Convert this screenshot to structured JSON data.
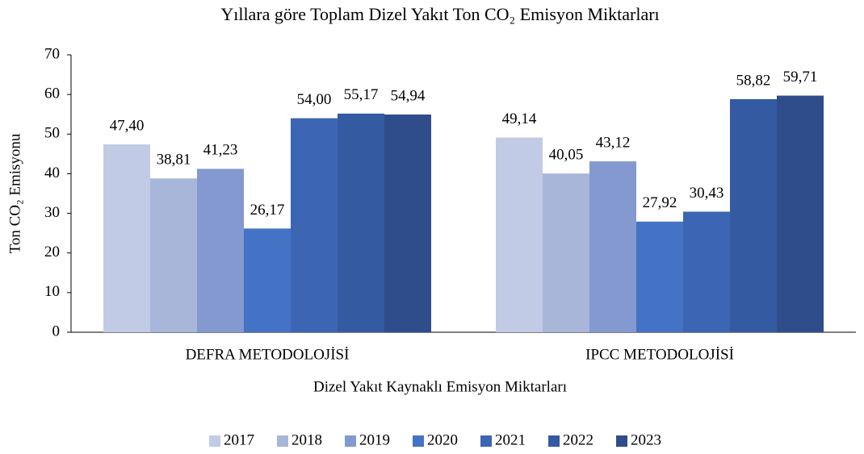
{
  "chart_data": {
    "type": "bar",
    "title": "Yıllara göre Toplam Dizel Yakıt Ton CO₂ Emisyon Miktarları",
    "x_label": "Dizel Yakıt Kaynaklı Emisyon Miktarları",
    "y_label": "Ton CO₂ Emisyonu",
    "categories": [
      "DEFRA METODOLOJİSİ",
      "IPCC METODOLOJİSİ"
    ],
    "series": [
      {
        "name": "2017",
        "color": "#c2cbe5",
        "values": [
          47.4,
          49.14
        ],
        "value_labels": [
          "47,40",
          "49,14"
        ]
      },
      {
        "name": "2018",
        "color": "#a8b6da",
        "values": [
          38.81,
          40.05
        ],
        "value_labels": [
          "38,81",
          "40,05"
        ]
      },
      {
        "name": "2019",
        "color": "#8399d0",
        "values": [
          41.23,
          43.12
        ],
        "value_labels": [
          "41,23",
          "43,12"
        ]
      },
      {
        "name": "2020",
        "color": "#4472c4",
        "values": [
          26.17,
          27.92
        ],
        "value_labels": [
          "26,17",
          "27,92"
        ]
      },
      {
        "name": "2021",
        "color": "#3c66b3",
        "values": [
          54.0,
          30.43
        ],
        "value_labels": [
          "54,00",
          "30,43"
        ]
      },
      {
        "name": "2022",
        "color": "#345aa2",
        "values": [
          55.17,
          58.82
        ],
        "value_labels": [
          "55,17",
          "58,82"
        ]
      },
      {
        "name": "2023",
        "color": "#2e4d8a",
        "values": [
          54.94,
          59.71
        ],
        "value_labels": [
          "54,94",
          "59,71"
        ]
      }
    ],
    "ylim": [
      0,
      70
    ],
    "yticks": [
      0,
      10,
      20,
      30,
      40,
      50,
      60,
      70
    ],
    "grid": false,
    "legend": "bottom"
  }
}
